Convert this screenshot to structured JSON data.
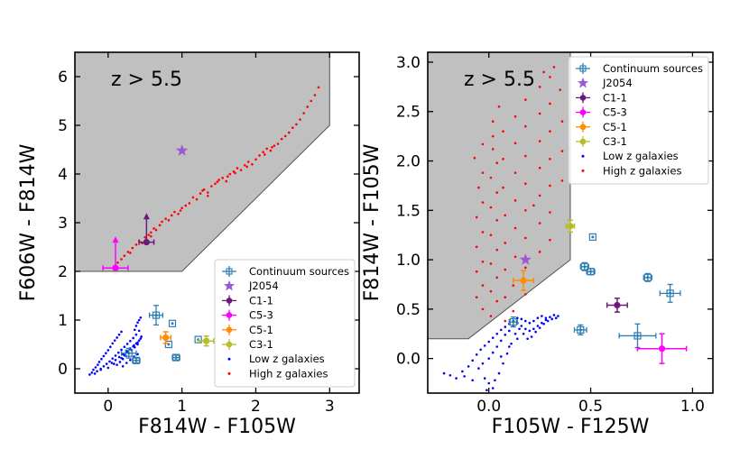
{
  "chart_data": [
    {
      "type": "scatter",
      "xlabel": "F814W - F105W",
      "ylabel": "F606W - F814W",
      "xlim": [
        -0.45,
        3.4
      ],
      "ylim": [
        -0.5,
        6.5
      ],
      "xticks": [
        0,
        1,
        2,
        3
      ],
      "yticks": [
        0,
        1,
        2,
        3,
        4,
        5,
        6
      ],
      "annotation": "z > 5.5",
      "region_polygon": [
        [
          -0.45,
          2.0
        ],
        [
          1.0,
          2.0
        ],
        [
          3.0,
          5.0
        ],
        [
          3.0,
          6.5
        ],
        [
          -0.45,
          6.5
        ]
      ],
      "legend": [
        "Continuum sources",
        "J2054",
        "C1-1",
        "C5-3",
        "C5-1",
        "C3-1",
        "Low z galaxies",
        "High z galaxies"
      ],
      "colors": {
        "continuum": "#2d7db3",
        "j2054": "#9b59d6",
        "c1": "#6a1b7a",
        "c53": "#ff00ff",
        "c51": "#ff8c00",
        "c31": "#b5bd2a",
        "low": "#0000ff",
        "high": "#ff0000",
        "region": "#c0c0c0"
      },
      "continuum": [
        {
          "x": 0.65,
          "y": 1.1,
          "xerr": 0.09,
          "yerr": 0.2
        },
        {
          "x": 0.87,
          "y": 0.93,
          "xerr": 0.0,
          "yerr": 0.0
        },
        {
          "x": 0.82,
          "y": 0.5,
          "xerr": 0.0,
          "yerr": 0.0
        },
        {
          "x": 0.92,
          "y": 0.23,
          "xerr": 0.05,
          "yerr": 0.05
        },
        {
          "x": 0.38,
          "y": 0.17,
          "xerr": 0.05,
          "yerr": 0.05
        },
        {
          "x": 0.28,
          "y": 0.32,
          "xerr": 0.1,
          "yerr": 0.1
        },
        {
          "x": 1.22,
          "y": 0.6,
          "xerr": 0.0,
          "yerr": 0.0
        }
      ],
      "j2054": {
        "x": 1.0,
        "y": 4.48
      },
      "c1": {
        "x": 0.52,
        "y": 2.6,
        "xerr": 0.1,
        "uplim_to": 3.2
      },
      "c53": {
        "x": 0.1,
        "y": 2.07,
        "xerr": 0.17,
        "uplim_to": 2.72
      },
      "c51": {
        "x": 0.78,
        "y": 0.64,
        "xerr": 0.07,
        "yerr": 0.12
      },
      "c31": {
        "x": 1.33,
        "y": 0.57,
        "xerr": 0.1,
        "yerr": 0.1
      },
      "high_z": [
        [
          0.08,
          2.1
        ],
        [
          0.13,
          2.18
        ],
        [
          0.18,
          2.25
        ],
        [
          0.22,
          2.32
        ],
        [
          0.27,
          2.4
        ],
        [
          0.3,
          2.38
        ],
        [
          0.33,
          2.48
        ],
        [
          0.38,
          2.55
        ],
        [
          0.42,
          2.62
        ],
        [
          0.46,
          2.58
        ],
        [
          0.5,
          2.7
        ],
        [
          0.55,
          2.75
        ],
        [
          0.58,
          2.8
        ],
        [
          0.62,
          2.88
        ],
        [
          0.65,
          2.85
        ],
        [
          0.7,
          2.95
        ],
        [
          0.73,
          3.02
        ],
        [
          0.78,
          3.08
        ],
        [
          0.82,
          3.05
        ],
        [
          0.86,
          3.15
        ],
        [
          0.9,
          3.22
        ],
        [
          0.95,
          3.18
        ],
        [
          1.0,
          3.3
        ],
        [
          1.05,
          3.35
        ],
        [
          1.1,
          3.4
        ],
        [
          1.15,
          3.52
        ],
        [
          1.2,
          3.48
        ],
        [
          1.25,
          3.6
        ],
        [
          1.3,
          3.68
        ],
        [
          1.35,
          3.62
        ],
        [
          1.4,
          3.75
        ],
        [
          1.45,
          3.8
        ],
        [
          1.5,
          3.88
        ],
        [
          1.55,
          3.92
        ],
        [
          1.6,
          3.85
        ],
        [
          1.65,
          4.0
        ],
        [
          1.7,
          4.05
        ],
        [
          1.75,
          4.12
        ],
        [
          1.8,
          4.08
        ],
        [
          1.85,
          4.18
        ],
        [
          1.9,
          4.25
        ],
        [
          1.95,
          4.2
        ],
        [
          2.0,
          4.3
        ],
        [
          2.05,
          4.38
        ],
        [
          2.1,
          4.45
        ],
        [
          2.15,
          4.52
        ],
        [
          2.2,
          4.48
        ],
        [
          2.25,
          4.58
        ],
        [
          2.3,
          4.62
        ],
        [
          2.35,
          4.72
        ],
        [
          2.4,
          4.78
        ],
        [
          2.45,
          4.85
        ],
        [
          2.5,
          4.95
        ],
        [
          2.55,
          5.02
        ],
        [
          2.6,
          5.12
        ],
        [
          2.65,
          5.25
        ],
        [
          2.7,
          5.38
        ],
        [
          2.75,
          5.5
        ],
        [
          2.8,
          5.62
        ],
        [
          2.85,
          5.78
        ],
        [
          1.35,
          3.55
        ],
        [
          1.62,
          3.95
        ],
        [
          1.88,
          4.15
        ],
        [
          2.12,
          4.4
        ],
        [
          0.98,
          3.25
        ],
        [
          1.28,
          3.66
        ],
        [
          2.22,
          4.55
        ],
        [
          0.58,
          2.72
        ],
        [
          1.48,
          3.84
        ],
        [
          1.72,
          4.02
        ]
      ],
      "low_z": [
        [
          -0.25,
          -0.12
        ],
        [
          -0.22,
          -0.08
        ],
        [
          -0.2,
          -0.02
        ],
        [
          -0.17,
          0.03
        ],
        [
          -0.14,
          0.08
        ],
        [
          -0.12,
          0.14
        ],
        [
          -0.09,
          0.2
        ],
        [
          -0.06,
          0.26
        ],
        [
          -0.03,
          0.32
        ],
        [
          0.0,
          0.38
        ],
        [
          0.03,
          0.45
        ],
        [
          0.06,
          0.52
        ],
        [
          0.09,
          0.58
        ],
        [
          0.12,
          0.64
        ],
        [
          0.15,
          0.7
        ],
        [
          0.18,
          0.76
        ],
        [
          -0.18,
          -0.1
        ],
        [
          -0.15,
          -0.05
        ],
        [
          -0.1,
          0.0
        ],
        [
          -0.06,
          0.05
        ],
        [
          -0.02,
          0.1
        ],
        [
          0.02,
          0.15
        ],
        [
          0.06,
          0.21
        ],
        [
          0.1,
          0.27
        ],
        [
          0.14,
          0.33
        ],
        [
          0.18,
          0.39
        ],
        [
          0.22,
          0.45
        ],
        [
          0.26,
          0.51
        ],
        [
          0.3,
          0.57
        ],
        [
          0.34,
          0.63
        ],
        [
          0.38,
          0.7
        ],
        [
          0.42,
          0.78
        ],
        [
          0.05,
          0.12
        ],
        [
          0.1,
          0.18
        ],
        [
          0.15,
          0.24
        ],
        [
          0.2,
          0.3
        ],
        [
          0.25,
          0.36
        ],
        [
          0.3,
          0.42
        ],
        [
          0.35,
          0.48
        ],
        [
          0.4,
          0.54
        ],
        [
          0.44,
          0.62
        ],
        [
          0.18,
          0.22
        ],
        [
          0.22,
          0.28
        ],
        [
          0.26,
          0.34
        ],
        [
          0.3,
          0.4
        ],
        [
          0.34,
          0.46
        ],
        [
          0.38,
          0.52
        ],
        [
          0.42,
          0.58
        ],
        [
          0.45,
          0.66
        ],
        [
          0.12,
          0.08
        ],
        [
          0.16,
          0.14
        ],
        [
          0.2,
          0.2
        ],
        [
          0.24,
          0.26
        ],
        [
          0.28,
          0.32
        ],
        [
          0.32,
          0.38
        ],
        [
          0.36,
          0.44
        ],
        [
          0.4,
          0.5
        ],
        [
          0.2,
          0.05
        ],
        [
          0.25,
          0.12
        ],
        [
          0.3,
          0.18
        ],
        [
          0.35,
          0.25
        ],
        [
          0.4,
          0.3
        ],
        [
          -0.1,
          -0.02
        ],
        [
          0.0,
          0.02
        ],
        [
          0.08,
          0.1
        ],
        [
          0.38,
          0.88
        ],
        [
          0.4,
          0.95
        ],
        [
          0.42,
          1.0
        ],
        [
          0.44,
          1.05
        ],
        [
          0.36,
          0.8
        ]
      ]
    },
    {
      "type": "scatter",
      "xlabel": "F105W - F125W",
      "ylabel": "F814W - F105W",
      "xlim": [
        -0.3,
        1.1
      ],
      "ylim": [
        -0.35,
        3.1
      ],
      "xticks": [
        0.0,
        0.5,
        1.0
      ],
      "xtick_labels": [
        "0.0",
        "0.5",
        "1.0"
      ],
      "yticks": [
        0.0,
        0.5,
        1.0,
        1.5,
        2.0,
        2.5,
        3.0
      ],
      "ytick_labels": [
        "0.0",
        "0.5",
        "1.0",
        "1.5",
        "2.0",
        "2.5",
        "3.0"
      ],
      "annotation": "z > 5.5",
      "region_polygon": [
        [
          -0.3,
          0.2
        ],
        [
          -0.1,
          0.2
        ],
        [
          0.4,
          1.0
        ],
        [
          0.4,
          3.1
        ],
        [
          -0.3,
          3.1
        ]
      ],
      "legend": [
        "Continuum sources",
        "J2054",
        "C1-1",
        "C5-3",
        "C5-1",
        "C3-1",
        "Low z galaxies",
        "High z galaxies"
      ],
      "colors": {
        "continuum": "#2d7db3",
        "j2054": "#9b59d6",
        "c1": "#6a1b7a",
        "c53": "#ff00ff",
        "c51": "#ff8c00",
        "c31": "#b5bd2a",
        "low": "#0000ff",
        "high": "#ff0000",
        "region": "#c0c0c0"
      },
      "continuum": [
        {
          "x": 0.51,
          "y": 1.23,
          "xerr": 0.0,
          "yerr": 0.0
        },
        {
          "x": 0.47,
          "y": 0.93,
          "xerr": 0.02,
          "yerr": 0.04
        },
        {
          "x": 0.5,
          "y": 0.88,
          "xerr": 0.02,
          "yerr": 0.03
        },
        {
          "x": 0.78,
          "y": 0.82,
          "xerr": 0.02,
          "yerr": 0.04
        },
        {
          "x": 0.89,
          "y": 0.66,
          "xerr": 0.05,
          "yerr": 0.09
        },
        {
          "x": 0.45,
          "y": 0.29,
          "xerr": 0.03,
          "yerr": 0.05
        },
        {
          "x": 0.12,
          "y": 0.37,
          "xerr": 0.02,
          "yerr": 0.05
        },
        {
          "x": 0.73,
          "y": 0.23,
          "xerr": 0.09,
          "yerr": 0.12
        }
      ],
      "j2054": {
        "x": 0.18,
        "y": 1.0
      },
      "c1": {
        "x": 0.63,
        "y": 0.54,
        "xerr": 0.05,
        "yerr": 0.07
      },
      "c53": {
        "x": 0.85,
        "y": 0.1,
        "xerr": 0.12,
        "yerr": 0.15
      },
      "c51": {
        "x": 0.17,
        "y": 0.79,
        "xerr": 0.05,
        "yerr": 0.1
      },
      "c31": {
        "x": 0.4,
        "y": 1.34,
        "xerr": 0.02,
        "yerr": 0.06
      },
      "high_z": [
        [
          -0.07,
          2.03
        ],
        [
          -0.05,
          1.73
        ],
        [
          -0.06,
          1.43
        ],
        [
          -0.06,
          1.13
        ],
        [
          -0.06,
          0.88
        ],
        [
          -0.06,
          0.62
        ],
        [
          -0.03,
          2.17
        ],
        [
          -0.03,
          1.88
        ],
        [
          -0.03,
          1.58
        ],
        [
          -0.03,
          1.28
        ],
        [
          -0.03,
          0.98
        ],
        [
          -0.03,
          0.74
        ],
        [
          -0.03,
          0.5
        ],
        [
          0.02,
          2.4
        ],
        [
          0.02,
          2.12
        ],
        [
          0.01,
          1.83
        ],
        [
          0.01,
          1.53
        ],
        [
          0.01,
          1.25
        ],
        [
          0.01,
          0.96
        ],
        [
          0.01,
          0.68
        ],
        [
          0.01,
          0.43
        ],
        [
          0.02,
          2.25
        ],
        [
          0.04,
          1.98
        ],
        [
          0.04,
          1.68
        ],
        [
          0.04,
          1.4
        ],
        [
          0.04,
          1.1
        ],
        [
          0.04,
          0.82
        ],
        [
          0.04,
          0.58
        ],
        [
          0.05,
          2.55
        ],
        [
          0.07,
          2.3
        ],
        [
          0.07,
          2.02
        ],
        [
          0.07,
          1.73
        ],
        [
          0.08,
          1.45
        ],
        [
          0.08,
          1.17
        ],
        [
          0.08,
          0.9
        ],
        [
          0.08,
          0.62
        ],
        [
          0.08,
          0.38
        ],
        [
          0.13,
          2.45
        ],
        [
          0.13,
          2.18
        ],
        [
          0.13,
          1.88
        ],
        [
          0.13,
          1.6
        ],
        [
          0.13,
          1.32
        ],
        [
          0.13,
          1.03
        ],
        [
          0.12,
          0.74
        ],
        [
          0.12,
          0.48
        ],
        [
          0.18,
          2.62
        ],
        [
          0.18,
          2.35
        ],
        [
          0.18,
          2.05
        ],
        [
          0.18,
          1.77
        ],
        [
          0.18,
          1.5
        ],
        [
          0.18,
          1.22
        ],
        [
          0.18,
          0.92
        ],
        [
          0.18,
          0.65
        ],
        [
          0.25,
          2.75
        ],
        [
          0.25,
          2.48
        ],
        [
          0.25,
          2.2
        ],
        [
          0.25,
          1.93
        ],
        [
          0.25,
          1.65
        ],
        [
          0.25,
          1.37
        ],
        [
          0.25,
          1.08
        ],
        [
          0.3,
          2.85
        ],
        [
          0.3,
          2.58
        ],
        [
          0.3,
          2.3
        ],
        [
          0.3,
          2.02
        ],
        [
          0.3,
          1.75
        ],
        [
          0.3,
          1.48
        ],
        [
          0.3,
          1.2
        ],
        [
          0.22,
          1.55
        ],
        [
          0.27,
          2.9
        ],
        [
          0.32,
          2.95
        ],
        [
          0.35,
          2.72
        ],
        [
          0.36,
          2.4
        ],
        [
          0.36,
          2.1
        ],
        [
          0.36,
          1.8
        ]
      ],
      "low_z": [
        [
          -0.22,
          -0.15
        ],
        [
          -0.19,
          -0.17
        ],
        [
          -0.16,
          -0.2
        ],
        [
          -0.13,
          -0.13
        ],
        [
          -0.1,
          -0.08
        ],
        [
          -0.08,
          -0.02
        ],
        [
          -0.06,
          0.04
        ],
        [
          -0.04,
          0.09
        ],
        [
          -0.02,
          0.13
        ],
        [
          0.0,
          0.17
        ],
        [
          0.02,
          0.21
        ],
        [
          0.04,
          0.25
        ],
        [
          0.06,
          0.29
        ],
        [
          0.08,
          0.32
        ],
        [
          0.1,
          0.35
        ],
        [
          0.12,
          0.38
        ],
        [
          0.14,
          0.41
        ],
        [
          0.16,
          0.4
        ],
        [
          0.18,
          0.38
        ],
        [
          0.2,
          0.36
        ],
        [
          0.22,
          0.38
        ],
        [
          0.24,
          0.41
        ],
        [
          0.26,
          0.43
        ],
        [
          0.28,
          0.41
        ],
        [
          -0.05,
          -0.1
        ],
        [
          -0.03,
          -0.05
        ],
        [
          0.0,
          0.0
        ],
        [
          0.02,
          0.06
        ],
        [
          0.04,
          0.12
        ],
        [
          0.06,
          0.18
        ],
        [
          0.08,
          0.24
        ],
        [
          0.1,
          0.28
        ],
        [
          0.12,
          0.33
        ],
        [
          0.14,
          0.36
        ],
        [
          0.16,
          0.33
        ],
        [
          0.18,
          0.3
        ],
        [
          0.2,
          0.28
        ],
        [
          0.22,
          0.3
        ],
        [
          0.24,
          0.33
        ],
        [
          0.26,
          0.36
        ],
        [
          0.28,
          0.39
        ],
        [
          0.3,
          0.42
        ],
        [
          0.32,
          0.44
        ],
        [
          0.34,
          0.43
        ],
        [
          -0.02,
          -0.2
        ],
        [
          0.0,
          -0.25
        ],
        [
          0.02,
          -0.3
        ],
        [
          -0.01,
          -0.32
        ],
        [
          0.03,
          -0.22
        ],
        [
          0.05,
          -0.15
        ],
        [
          0.07,
          -0.05
        ],
        [
          0.09,
          0.05
        ],
        [
          0.11,
          0.15
        ],
        [
          0.13,
          0.25
        ],
        [
          0.15,
          0.3
        ],
        [
          0.17,
          0.25
        ],
        [
          0.19,
          0.2
        ],
        [
          0.21,
          0.22
        ],
        [
          0.23,
          0.27
        ],
        [
          0.25,
          0.31
        ],
        [
          0.27,
          0.35
        ],
        [
          0.29,
          0.38
        ],
        [
          0.31,
          0.4
        ],
        [
          0.33,
          0.41
        ],
        [
          -0.12,
          -0.18
        ],
        [
          -0.08,
          -0.22
        ],
        [
          0.06,
          0.02
        ],
        [
          0.1,
          0.12
        ],
        [
          0.14,
          0.2
        ]
      ]
    }
  ]
}
